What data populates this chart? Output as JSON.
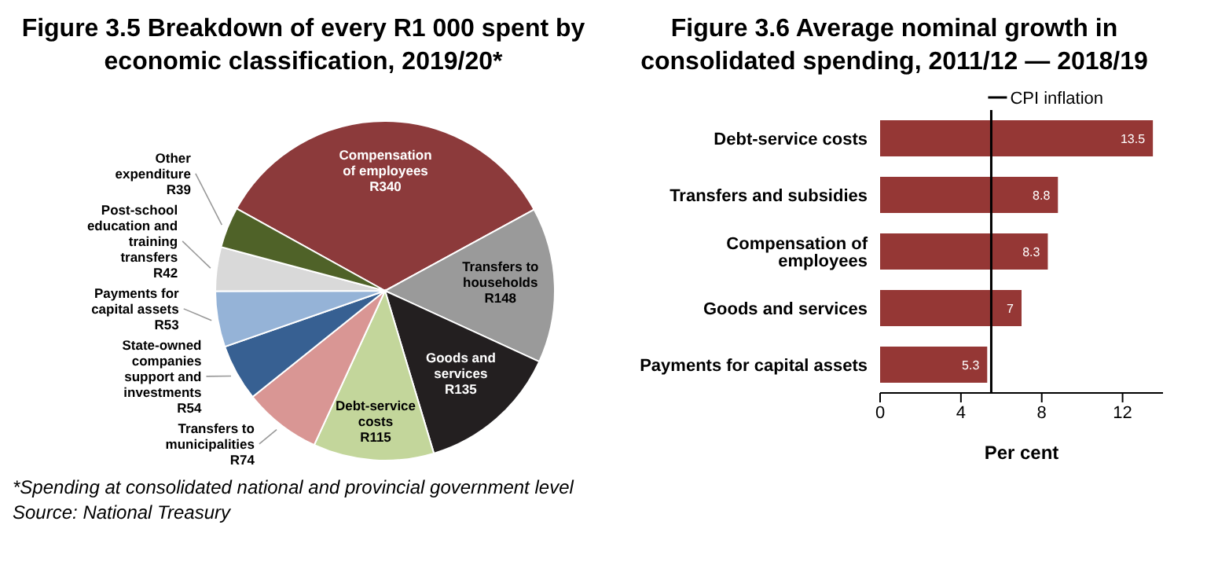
{
  "chart_data": [
    {
      "type": "pie",
      "title": "Figure 3.5 Breakdown of every R1 000 spent by economic classification, 2019/20*",
      "categories": [
        "Compensation of employees",
        "Transfers to households",
        "Goods and services",
        "Debt-service costs",
        "Transfers to municipalities",
        "State-owned companies support and investments",
        "Payments for capital assets",
        "Post-school education and training transfers",
        "Other expenditure"
      ],
      "values": [
        340,
        148,
        135,
        115,
        74,
        54,
        53,
        42,
        39
      ],
      "value_labels": [
        "R340",
        "R148",
        "R135",
        "R115",
        "R74",
        "R54",
        "R53",
        "R42",
        "R39"
      ],
      "colors": [
        "#8c3a3b",
        "#9a9a9a",
        "#231f20",
        "#c3d69b",
        "#d99694",
        "#376092",
        "#95b3d7",
        "#d9d9d9",
        "#4f6228"
      ],
      "annotations": [
        "*Spending at consolidated national and provincial government level",
        "Source: National Treasury"
      ]
    },
    {
      "type": "bar",
      "orientation": "horizontal",
      "title": "Figure 3.6 Average nominal growth in consolidated spending, 2011/12 — 2018/19",
      "categories": [
        "Debt-service costs",
        "Transfers and subsidies",
        "Compensation of employees",
        "Goods and services",
        "Payments for capital assets"
      ],
      "values": [
        13.5,
        8.8,
        8.3,
        7,
        5.3
      ],
      "color": "#953735",
      "data_labels": true,
      "xlim": [
        0,
        14
      ],
      "xticks": [
        0,
        4,
        8,
        12
      ],
      "xlabel": "Per cent",
      "ref_lines": [
        {
          "axis": "x",
          "value": 5.5,
          "label": "CPI inflation",
          "color": "#000000"
        }
      ]
    }
  ]
}
